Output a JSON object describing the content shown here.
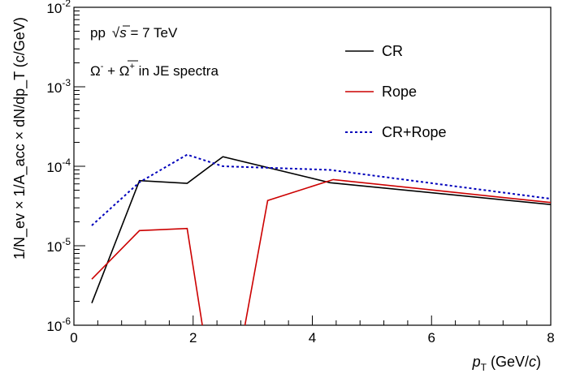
{
  "chart_data": {
    "type": "line",
    "x_axis": {
      "label_main": "p",
      "label_sub": "T",
      "label_unit_prefix": " (GeV/",
      "label_unit_var": "c",
      "label_unit_suffix": ")",
      "range": [
        0,
        8
      ],
      "ticks": [
        0,
        2,
        4,
        6,
        8
      ],
      "tick_labels": [
        "0",
        "2",
        "4",
        "6",
        "8"
      ]
    },
    "y_axis": {
      "label_text": "1/N_ev × 1/A_acc × dN/dp_T (c/GeV)",
      "scale": "log",
      "range": [
        1e-06,
        0.01
      ],
      "ticks": [
        1e-06,
        1e-05,
        0.0001,
        0.001,
        0.01
      ],
      "tick_exponents": [
        "-6",
        "-5",
        "-4",
        "-3",
        "-2"
      ],
      "tick_base": "10"
    },
    "annotations": {
      "energy_prefix": "pp",
      "energy_sqrt_var": "s",
      "energy_value": " = 7 TeV",
      "particle_omega": "Ω",
      "particle_minus": "-",
      "particle_plus_sign": " + ",
      "particle_plus": "+",
      "particle_suffix": " in JE spectra"
    },
    "legend_position": "top-right",
    "series": [
      {
        "name": "CR",
        "color": "#000000",
        "dash": "solid",
        "x": [
          0.3,
          1.1,
          1.9,
          2.5,
          4.3,
          8.0
        ],
        "y": [
          1.9e-06,
          6.6e-05,
          6.1e-05,
          0.000132,
          6.2e-05,
          3.3e-05
        ]
      },
      {
        "name": "Rope",
        "color": "#cc0000",
        "dash": "solid",
        "x": [
          0.3,
          1.1,
          1.9,
          2.3,
          2.7,
          3.25,
          4.35,
          8.0
        ],
        "y": [
          3.8e-06,
          1.55e-05,
          1.65e-05,
          2e-07,
          2e-07,
          3.7e-05,
          6.8e-05,
          3.5e-05
        ]
      },
      {
        "name": "CR+Rope",
        "color": "#0000bb",
        "dash": "dotted",
        "x": [
          0.3,
          1.1,
          1.9,
          2.5,
          4.3,
          8.0
        ],
        "y": [
          1.8e-05,
          6.3e-05,
          0.00014,
          0.0001,
          9e-05,
          3.9e-05
        ]
      }
    ]
  }
}
